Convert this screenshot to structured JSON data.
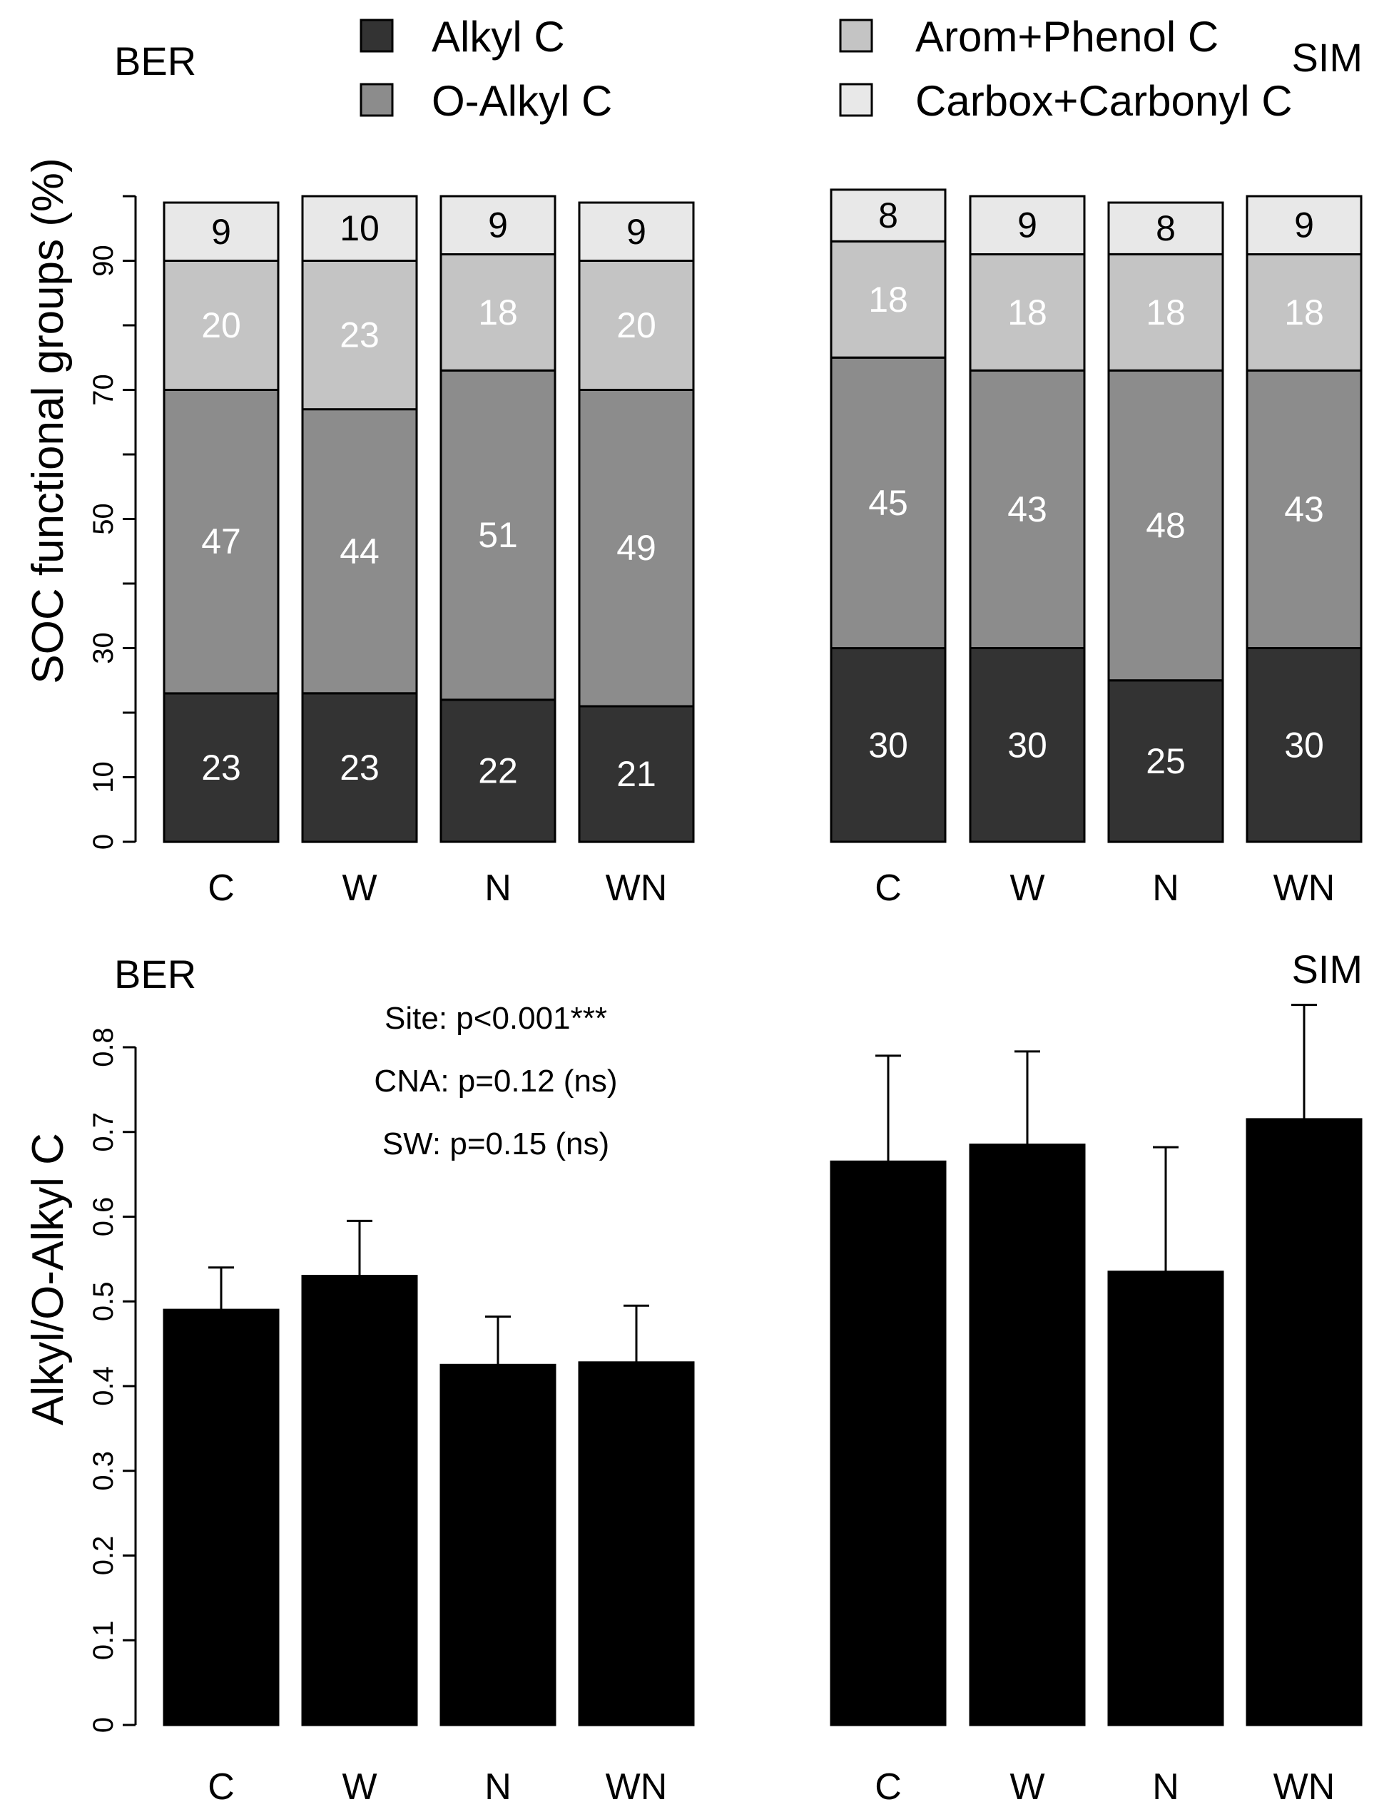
{
  "colors": {
    "alkyl": "#333333",
    "o_alkyl": "#8c8c8c",
    "arom_phenol": "#c4c4c4",
    "carbox_carbonyl": "#e8e8e8",
    "ratio_bar": "#000000",
    "label_on_dark": "#ffffff",
    "label_on_light": "#000000"
  },
  "legend": {
    "items": [
      {
        "label": "Alkyl C",
        "color": "#333333"
      },
      {
        "label": "O-Alkyl C",
        "color": "#8c8c8c"
      },
      {
        "label": "Arom+Phenol C",
        "color": "#c4c4c4"
      },
      {
        "label": "Carbox+Carbonyl C",
        "color": "#e8e8e8"
      }
    ]
  },
  "chart_data": [
    {
      "type": "bar",
      "stacked": true,
      "panel": "top-left",
      "title": "BER",
      "ylabel": "SOC functional groups (%)",
      "ylim": [
        0,
        100
      ],
      "yticks": [
        0,
        10,
        30,
        50,
        70,
        90
      ],
      "categories": [
        "C",
        "W",
        "N",
        "WN"
      ],
      "series": [
        {
          "name": "Alkyl C",
          "values": [
            23,
            23,
            22,
            21
          ]
        },
        {
          "name": "O-Alkyl C",
          "values": [
            47,
            44,
            51,
            49
          ]
        },
        {
          "name": "Arom+Phenol C",
          "values": [
            20,
            23,
            18,
            20
          ]
        },
        {
          "name": "Carbox+Carbonyl C",
          "values": [
            9,
            10,
            9,
            9
          ]
        }
      ]
    },
    {
      "type": "bar",
      "stacked": true,
      "panel": "top-right",
      "title": "SIM",
      "ylim": [
        0,
        100
      ],
      "categories": [
        "C",
        "W",
        "N",
        "WN"
      ],
      "series": [
        {
          "name": "Alkyl C",
          "values": [
            30,
            30,
            25,
            30
          ]
        },
        {
          "name": "O-Alkyl C",
          "values": [
            45,
            43,
            48,
            43
          ]
        },
        {
          "name": "Arom+Phenol C",
          "values": [
            18,
            18,
            18,
            18
          ]
        },
        {
          "name": "Carbox+Carbonyl C",
          "values": [
            8,
            9,
            8,
            9
          ]
        }
      ]
    },
    {
      "type": "bar",
      "panel": "bottom-left",
      "title": "BER",
      "ylabel": "Alkyl/O-Alkyl C",
      "ylim": [
        0,
        0.8
      ],
      "yticks": [
        "0",
        "0.1",
        "0.2",
        "0.3",
        "0.4",
        "0.5",
        "0.6",
        "0.7",
        "0.8"
      ],
      "categories": [
        "C",
        "W",
        "N",
        "WN"
      ],
      "values": [
        0.49,
        0.53,
        0.425,
        0.428
      ],
      "error_upper": [
        0.54,
        0.595,
        0.482,
        0.495
      ],
      "annotations": [
        "Site: p<0.001***",
        "CNA: p=0.12 (ns)",
        "SW: p=0.15 (ns)"
      ]
    },
    {
      "type": "bar",
      "panel": "bottom-right",
      "title": "SIM",
      "ylim": [
        0,
        0.8
      ],
      "categories": [
        "C",
        "W",
        "N",
        "WN"
      ],
      "values": [
        0.665,
        0.685,
        0.535,
        0.715
      ],
      "error_upper": [
        0.79,
        0.795,
        0.682,
        0.85
      ]
    }
  ]
}
